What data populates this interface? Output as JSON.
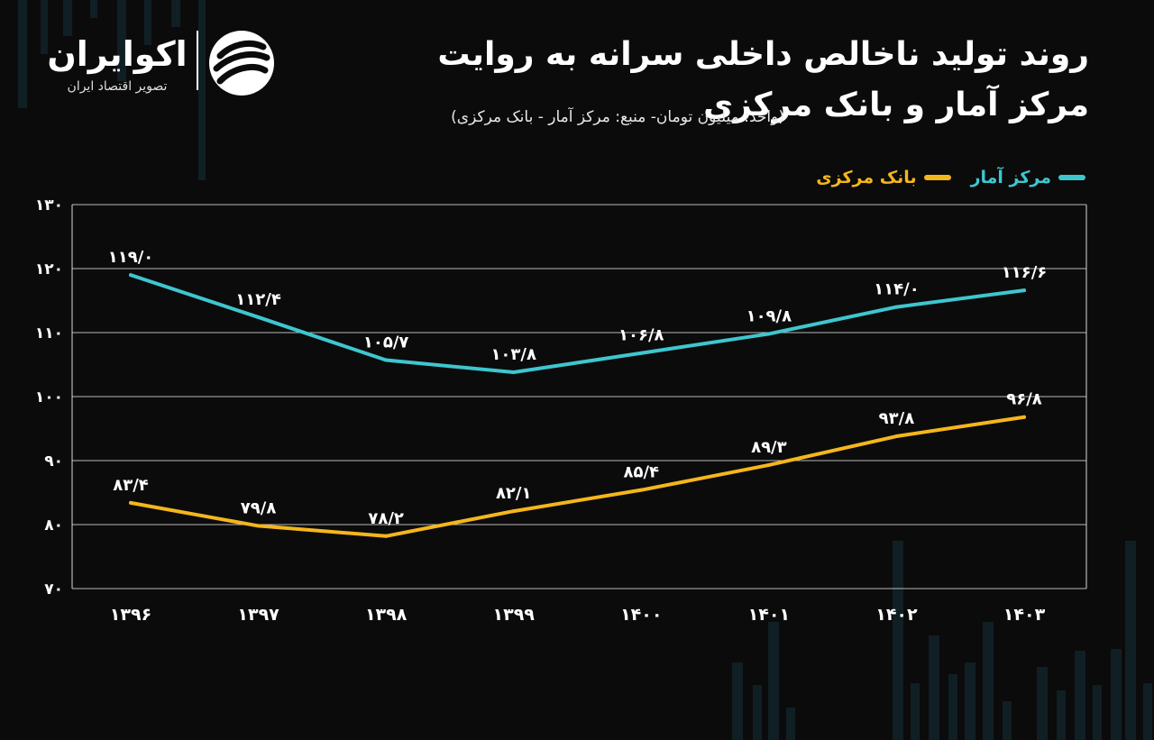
{
  "brand": {
    "name": "اکوایران",
    "tagline": "تصویر اقتصاد ایران"
  },
  "header": {
    "title_line1": "روند تولید ناخالص داخلی سرانه به روایت",
    "title_line2": "مرکز آمار و بانک مرکزی",
    "subtitle": "(واحد: میلیون تومان- منبع: مرکز آمار - بانک مرکزی)"
  },
  "colors": {
    "background": "#0b0b0b",
    "series_amar": "#3ec6cf",
    "series_bank": "#f5b61c",
    "grid": "#d9d9d9"
  },
  "chart_data": {
    "type": "line",
    "title": "روند تولید ناخالص داخلی سرانه به روایت مرکز آمار و بانک مرکزی",
    "x": [
      "۱۳۹۶",
      "۱۳۹۷",
      "۱۳۹۸",
      "۱۳۹۹",
      "۱۴۰۰",
      "۱۴۰۱",
      "۱۴۰۲",
      "۱۴۰۳"
    ],
    "series": [
      {
        "name": "مرکز آمار",
        "values": [
          119.0,
          112.4,
          105.7,
          103.8,
          106.8,
          109.8,
          114.0,
          116.6
        ],
        "labels": [
          "۱۱۹/۰",
          "۱۱۲/۴",
          "۱۰۵/۷",
          "۱۰۳/۸",
          "۱۰۶/۸",
          "۱۰۹/۸",
          "۱۱۴/۰",
          "۱۱۶/۶"
        ]
      },
      {
        "name": "بانک مرکزی",
        "values": [
          83.4,
          79.8,
          78.2,
          82.1,
          85.4,
          89.3,
          93.8,
          96.8
        ],
        "labels": [
          "۸۳/۴",
          "۷۹/۸",
          "۷۸/۲",
          "۸۲/۱",
          "۸۵/۴",
          "۸۹/۳",
          "۹۳/۸",
          "۹۶/۸"
        ]
      }
    ],
    "ylim": [
      70,
      130
    ],
    "yticks": [
      70,
      80,
      90,
      100,
      110,
      120,
      130
    ],
    "ytick_labels": [
      "۷۰",
      "۸۰",
      "۹۰",
      "۱۰۰",
      "۱۱۰",
      "۱۲۰",
      "۱۳۰"
    ],
    "grid": true,
    "legend": "top-right"
  }
}
